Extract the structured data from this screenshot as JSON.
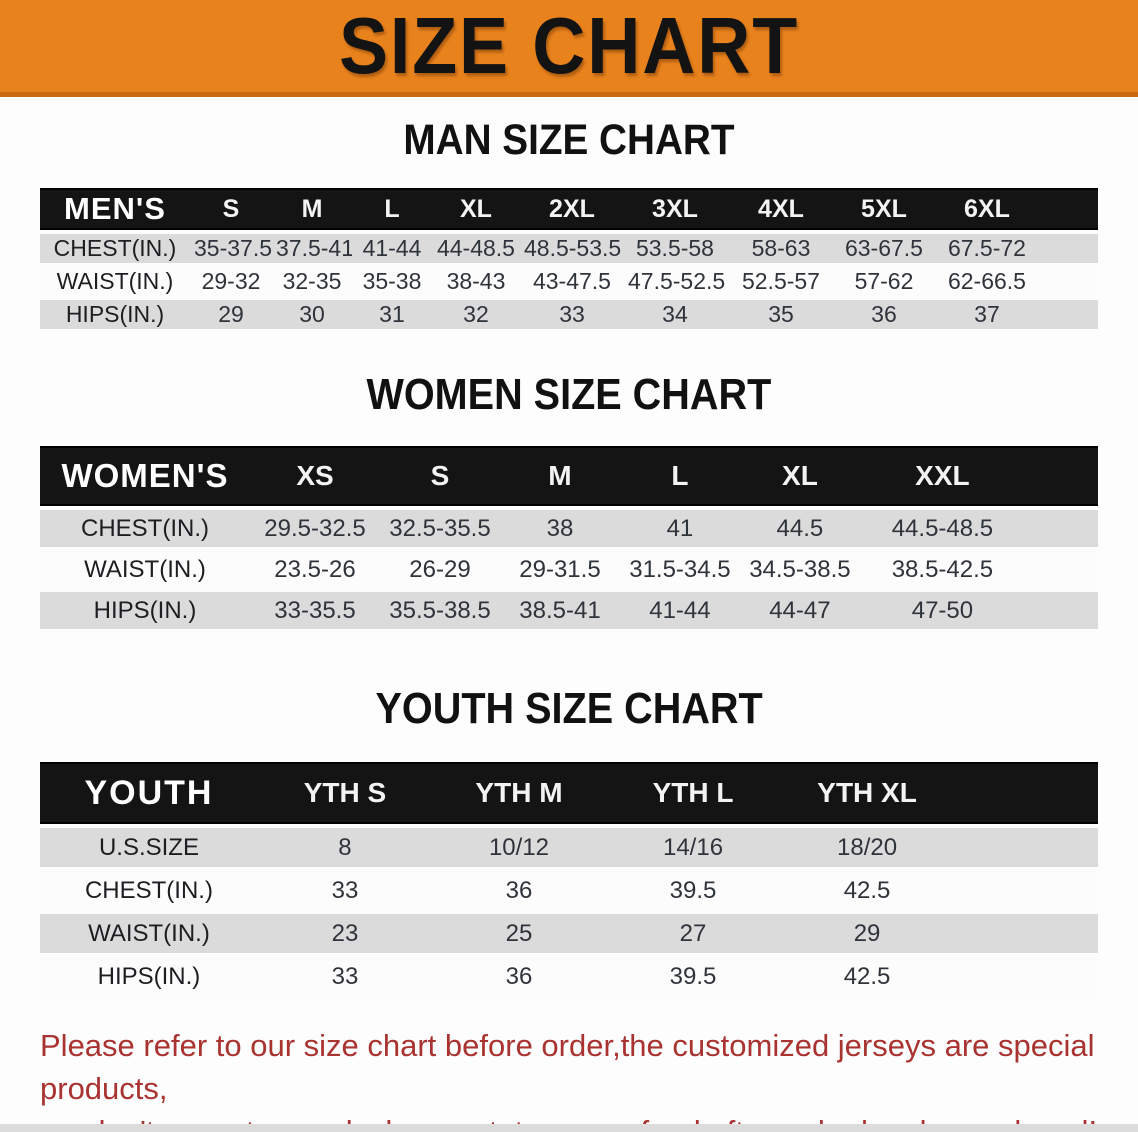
{
  "banner": {
    "title": "SIZE CHART"
  },
  "sections": [
    {
      "id": "men",
      "heading": "MAN SIZE CHART",
      "table": {
        "group_label": "MEN'S",
        "size_columns": [
          "S",
          "M",
          "L",
          "XL",
          "2XL",
          "3XL",
          "4XL",
          "5XL",
          "6XL"
        ],
        "rows": [
          {
            "label": "CHEST(IN.)",
            "values": [
              "35-37.5",
              "37.5-41",
              "41-44",
              "44-48.5",
              "48.5-53.5",
              "53.5-58",
              "58-63",
              "63-67.5",
              "67.5-72"
            ]
          },
          {
            "label": "WAIST(IN.)",
            "values": [
              "29-32",
              "32-35",
              "35-38",
              "38-43",
              "43-47.5",
              "47.5-52.5",
              "52.5-57",
              "57-62",
              "62-66.5"
            ]
          },
          {
            "label": "HIPS(IN.)",
            "values": [
              "29",
              "30",
              "31",
              "32",
              "33",
              "34",
              "35",
              "36",
              "37"
            ]
          }
        ]
      }
    },
    {
      "id": "women",
      "heading": "WOMEN SIZE CHART",
      "table": {
        "group_label": "WOMEN'S",
        "size_columns": [
          "XS",
          "S",
          "M",
          "L",
          "XL",
          "XXL"
        ],
        "rows": [
          {
            "label": "CHEST(IN.)",
            "values": [
              "29.5-32.5",
              "32.5-35.5",
              "38",
              "41",
              "44.5",
              "44.5-48.5"
            ]
          },
          {
            "label": "WAIST(IN.)",
            "values": [
              "23.5-26",
              "26-29",
              "29-31.5",
              "31.5-34.5",
              "34.5-38.5",
              "38.5-42.5"
            ]
          },
          {
            "label": "HIPS(IN.)",
            "values": [
              "33-35.5",
              "35.5-38.5",
              "38.5-41",
              "41-44",
              "44-47",
              "47-50"
            ]
          }
        ]
      }
    },
    {
      "id": "youth",
      "heading": "YOUTH SIZE CHART",
      "table": {
        "group_label": "YOUTH",
        "size_columns": [
          "YTH S",
          "YTH M",
          "YTH L",
          "YTH XL"
        ],
        "rows": [
          {
            "label": "U.S.SIZE",
            "values": [
              "8",
              "10/12",
              "14/16",
              "18/20"
            ]
          },
          {
            "label": "CHEST(IN.)",
            "values": [
              "33",
              "36",
              "39.5",
              "42.5"
            ]
          },
          {
            "label": "WAIST(IN.)",
            "values": [
              "23",
              "25",
              "27",
              "29"
            ]
          },
          {
            "label": "HIPS(IN.)",
            "values": [
              "33",
              "36",
              "39.5",
              "42.5"
            ]
          }
        ]
      }
    }
  ],
  "footer": {
    "line1": "Please refer to our size chart before order,the customized jerseys are special products,",
    "line2": "we don't accept cancel, change, teturn or refund after order has been placed!"
  },
  "colors": {
    "banner_bg": "#E8821C",
    "banner_border": "#C96A10",
    "header_bar": "#141414",
    "row_gray": "#DBDBDB",
    "row_white": "#FCFCFC",
    "heading_text": "#111111",
    "footer_text": "#A93330"
  }
}
